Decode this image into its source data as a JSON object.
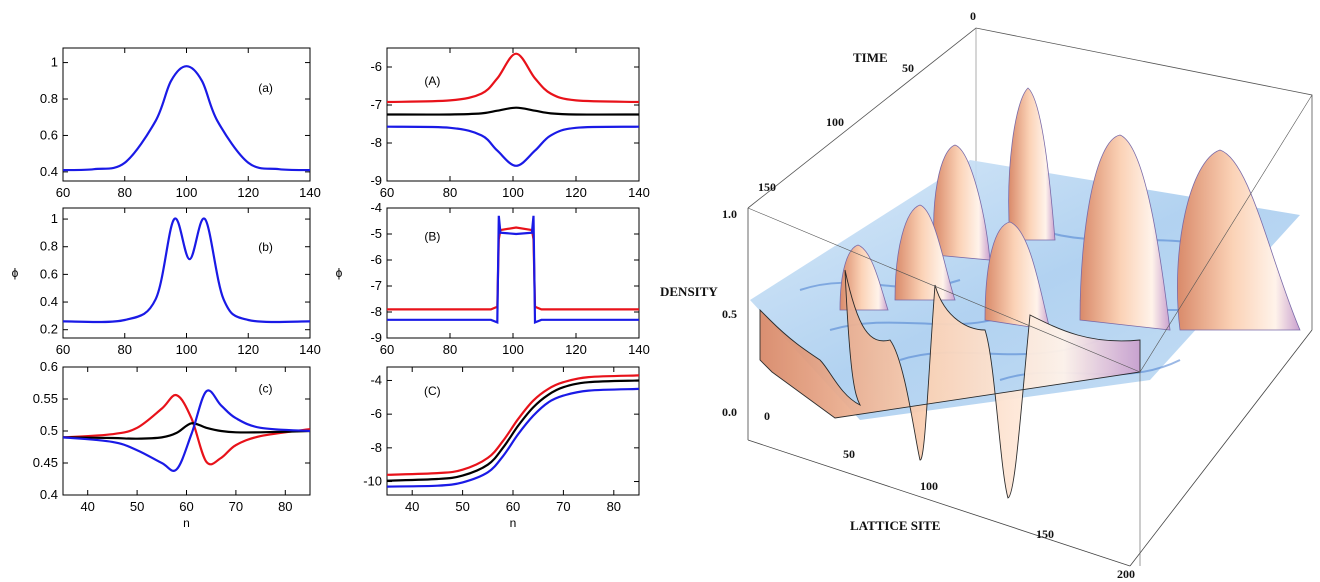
{
  "colors": {
    "red": "#e8121a",
    "black": "#000000",
    "blue": "#1a1ae6",
    "surface_light": "#bcd8f2",
    "peak": "#f4b08c"
  },
  "chart_data": [
    {
      "type": "line",
      "panel": "(a)",
      "x": [
        60,
        70,
        80,
        90,
        95,
        100,
        105,
        110,
        120,
        130,
        140
      ],
      "series": [
        {
          "color": "blue",
          "values": [
            0.41,
            0.415,
            0.45,
            0.68,
            0.9,
            0.98,
            0.9,
            0.68,
            0.45,
            0.415,
            0.41
          ]
        }
      ],
      "xlim": [
        60,
        140
      ],
      "ylim": [
        0.35,
        1.08
      ],
      "xticks": [
        60,
        80,
        100,
        120,
        140
      ],
      "yticks": [
        0.4,
        0.6,
        0.8,
        1
      ],
      "xticklabels": [
        "60",
        "80",
        "100",
        "120",
        "140"
      ],
      "yticklabels": [
        "0.4",
        "0.6",
        "0.8",
        "1"
      ]
    },
    {
      "type": "line",
      "panel": "(b)",
      "ylabel": "ϕ",
      "x": [
        60,
        80,
        90,
        96,
        101,
        106,
        112,
        120,
        140
      ],
      "series": [
        {
          "color": "blue",
          "values": [
            0.26,
            0.27,
            0.42,
            1.0,
            0.71,
            1.0,
            0.42,
            0.27,
            0.26
          ]
        }
      ],
      "xlim": [
        60,
        140
      ],
      "ylim": [
        0.14,
        1.08
      ],
      "xticks": [
        60,
        80,
        100,
        120,
        140
      ],
      "yticks": [
        0.2,
        0.4,
        0.6,
        0.8,
        1
      ],
      "xticklabels": [
        "60",
        "80",
        "100",
        "120",
        "140"
      ],
      "yticklabels": [
        "0.2",
        "0.4",
        "0.6",
        "0.8",
        "1"
      ]
    },
    {
      "type": "line",
      "panel": "(c)",
      "xlabel": "n",
      "x": [
        35,
        45,
        50,
        55,
        58,
        61,
        64,
        67,
        70,
        75,
        85
      ],
      "series": [
        {
          "color": "red",
          "values": [
            0.49,
            0.495,
            0.505,
            0.535,
            0.556,
            0.52,
            0.452,
            0.458,
            0.478,
            0.492,
            0.503
          ]
        },
        {
          "color": "black",
          "values": [
            0.49,
            0.489,
            0.488,
            0.49,
            0.497,
            0.512,
            0.505,
            0.5,
            0.498,
            0.498,
            0.5
          ]
        },
        {
          "color": "blue",
          "values": [
            0.49,
            0.483,
            0.47,
            0.45,
            0.44,
            0.495,
            0.562,
            0.54,
            0.52,
            0.505,
            0.5
          ]
        }
      ],
      "xlim": [
        35,
        85
      ],
      "ylim": [
        0.4,
        0.6
      ],
      "xticks": [
        40,
        50,
        60,
        70,
        80
      ],
      "yticks": [
        0.4,
        0.45,
        0.5,
        0.55,
        0.6
      ],
      "xticklabels": [
        "40",
        "50",
        "60",
        "70",
        "80"
      ],
      "yticklabels": [
        "0.4",
        "0.45",
        "0.5",
        "0.55",
        "0.6"
      ]
    },
    {
      "type": "line",
      "panel": "(A)",
      "x": [
        60,
        80,
        90,
        95,
        101,
        107,
        112,
        120,
        140
      ],
      "series": [
        {
          "color": "red",
          "values": [
            -6.92,
            -6.88,
            -6.7,
            -6.3,
            -5.65,
            -6.3,
            -6.7,
            -6.88,
            -6.92
          ]
        },
        {
          "color": "black",
          "values": [
            -7.25,
            -7.25,
            -7.22,
            -7.15,
            -7.07,
            -7.15,
            -7.22,
            -7.25,
            -7.25
          ]
        },
        {
          "color": "blue",
          "values": [
            -7.57,
            -7.6,
            -7.8,
            -8.2,
            -8.6,
            -8.2,
            -7.8,
            -7.6,
            -7.57
          ]
        }
      ],
      "xlim": [
        60,
        140
      ],
      "ylim": [
        -9,
        -5.5
      ],
      "xticks": [
        60,
        80,
        100,
        120,
        140
      ],
      "yticks": [
        -9,
        -8,
        -7,
        -6
      ],
      "xticklabels": [
        "60",
        "80",
        "100",
        "120",
        "140"
      ],
      "yticklabels": [
        "-9",
        "-8",
        "-7",
        "-6"
      ]
    },
    {
      "type": "line",
      "panel": "(B)",
      "ylabel": "ϕ",
      "x": [
        60,
        80,
        93,
        95,
        95.5,
        96,
        101,
        106,
        106.5,
        107,
        109,
        120,
        140
      ],
      "series": [
        {
          "color": "red",
          "values": [
            -7.9,
            -7.9,
            -7.9,
            -7.8,
            -5.2,
            -4.85,
            -4.75,
            -4.85,
            -5.2,
            -7.8,
            -7.9,
            -7.9,
            -7.9
          ]
        },
        {
          "color": "blue",
          "values": [
            -8.3,
            -8.3,
            -8.3,
            -8.4,
            -4.3,
            -4.95,
            -5.0,
            -4.95,
            -4.3,
            -8.4,
            -8.3,
            -8.3,
            -8.3
          ]
        }
      ],
      "xlim": [
        60,
        140
      ],
      "ylim": [
        -9,
        -4
      ],
      "xticks": [
        60,
        80,
        100,
        120,
        140
      ],
      "yticks": [
        -9,
        -8,
        -7,
        -6,
        -5,
        -4
      ],
      "xticklabels": [
        "60",
        "80",
        "100",
        "120",
        "140"
      ],
      "yticklabels": [
        "-9",
        "-8",
        "-7",
        "-6",
        "-5",
        "-4"
      ]
    },
    {
      "type": "line",
      "panel": "(C)",
      "xlabel": "n",
      "x": [
        35,
        45,
        50,
        55,
        58,
        61,
        64,
        67,
        70,
        75,
        85
      ],
      "series": [
        {
          "color": "red",
          "values": [
            -9.6,
            -9.5,
            -9.3,
            -8.6,
            -7.6,
            -6.3,
            -5.2,
            -4.5,
            -4.1,
            -3.8,
            -3.7
          ]
        },
        {
          "color": "black",
          "values": [
            -9.95,
            -9.85,
            -9.65,
            -9.0,
            -8.0,
            -6.7,
            -5.6,
            -4.85,
            -4.4,
            -4.1,
            -4.0
          ]
        },
        {
          "color": "blue",
          "values": [
            -10.3,
            -10.25,
            -10.05,
            -9.45,
            -8.5,
            -7.2,
            -6.1,
            -5.3,
            -4.9,
            -4.6,
            -4.5
          ]
        }
      ],
      "xlim": [
        35,
        85
      ],
      "ylim": [
        -10.8,
        -3.2
      ],
      "xticks": [
        40,
        50,
        60,
        70,
        80
      ],
      "yticks": [
        -10,
        -8,
        -6,
        -4
      ],
      "xticklabels": [
        "40",
        "50",
        "60",
        "70",
        "80"
      ],
      "yticklabels": [
        "-10",
        "-8",
        "-6",
        "-4"
      ]
    },
    {
      "type": "surface3d",
      "axes": {
        "time_label": "TIME",
        "density_label": "DENSITY",
        "site_label": "LATTICE SITE"
      },
      "time_ticks": [
        "0",
        "50",
        "100",
        "150"
      ],
      "density_ticks": [
        "0.0",
        "0.5",
        "1.0"
      ],
      "site_ticks": [
        "0",
        "50",
        "100",
        "150",
        "200"
      ]
    }
  ]
}
